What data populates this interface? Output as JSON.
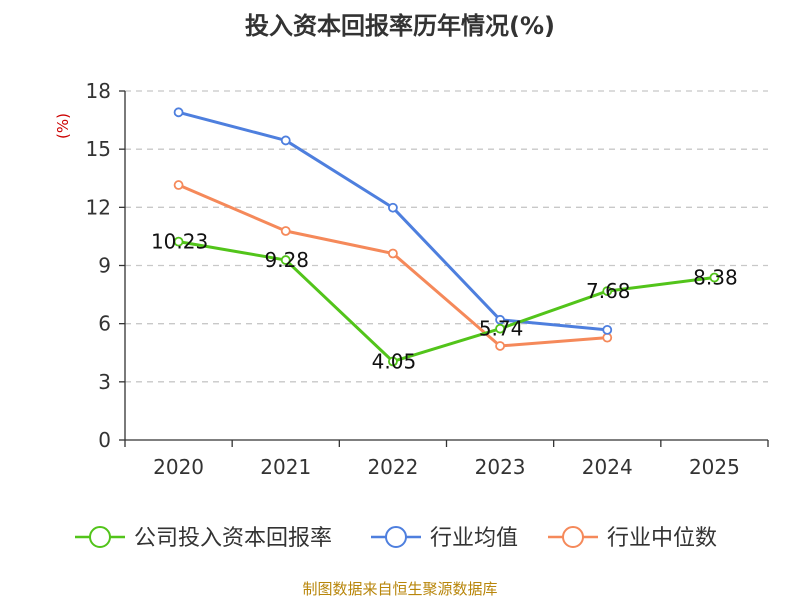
{
  "chart_data": {
    "type": "line",
    "title": "投入资本回报率历年情况(%)",
    "ylabel": "(%)",
    "xlabel": "",
    "categories": [
      "2020",
      "2021",
      "2022",
      "2023",
      "2024",
      "2025"
    ],
    "ylim": [
      0,
      18
    ],
    "yticks": [
      0,
      3,
      6,
      9,
      12,
      15,
      18
    ],
    "grid": true,
    "legend_position": "bottom",
    "series": [
      {
        "name": "公司投入资本回报率",
        "color": "#52c41a",
        "values": [
          10.23,
          9.28,
          4.05,
          5.74,
          7.68,
          8.38
        ],
        "labels": [
          "10.23",
          "9.28",
          "4.05",
          "5.74",
          "7.68",
          "8.38"
        ]
      },
      {
        "name": "行业均值",
        "color": "#4e7fde",
        "values": [
          16.9,
          15.45,
          11.98,
          6.2,
          5.68,
          null
        ]
      },
      {
        "name": "行业中位数",
        "color": "#f5895a",
        "values": [
          13.15,
          10.78,
          9.62,
          4.85,
          5.28,
          null
        ]
      }
    ]
  },
  "source": "制图数据来自恒生聚源数据库"
}
